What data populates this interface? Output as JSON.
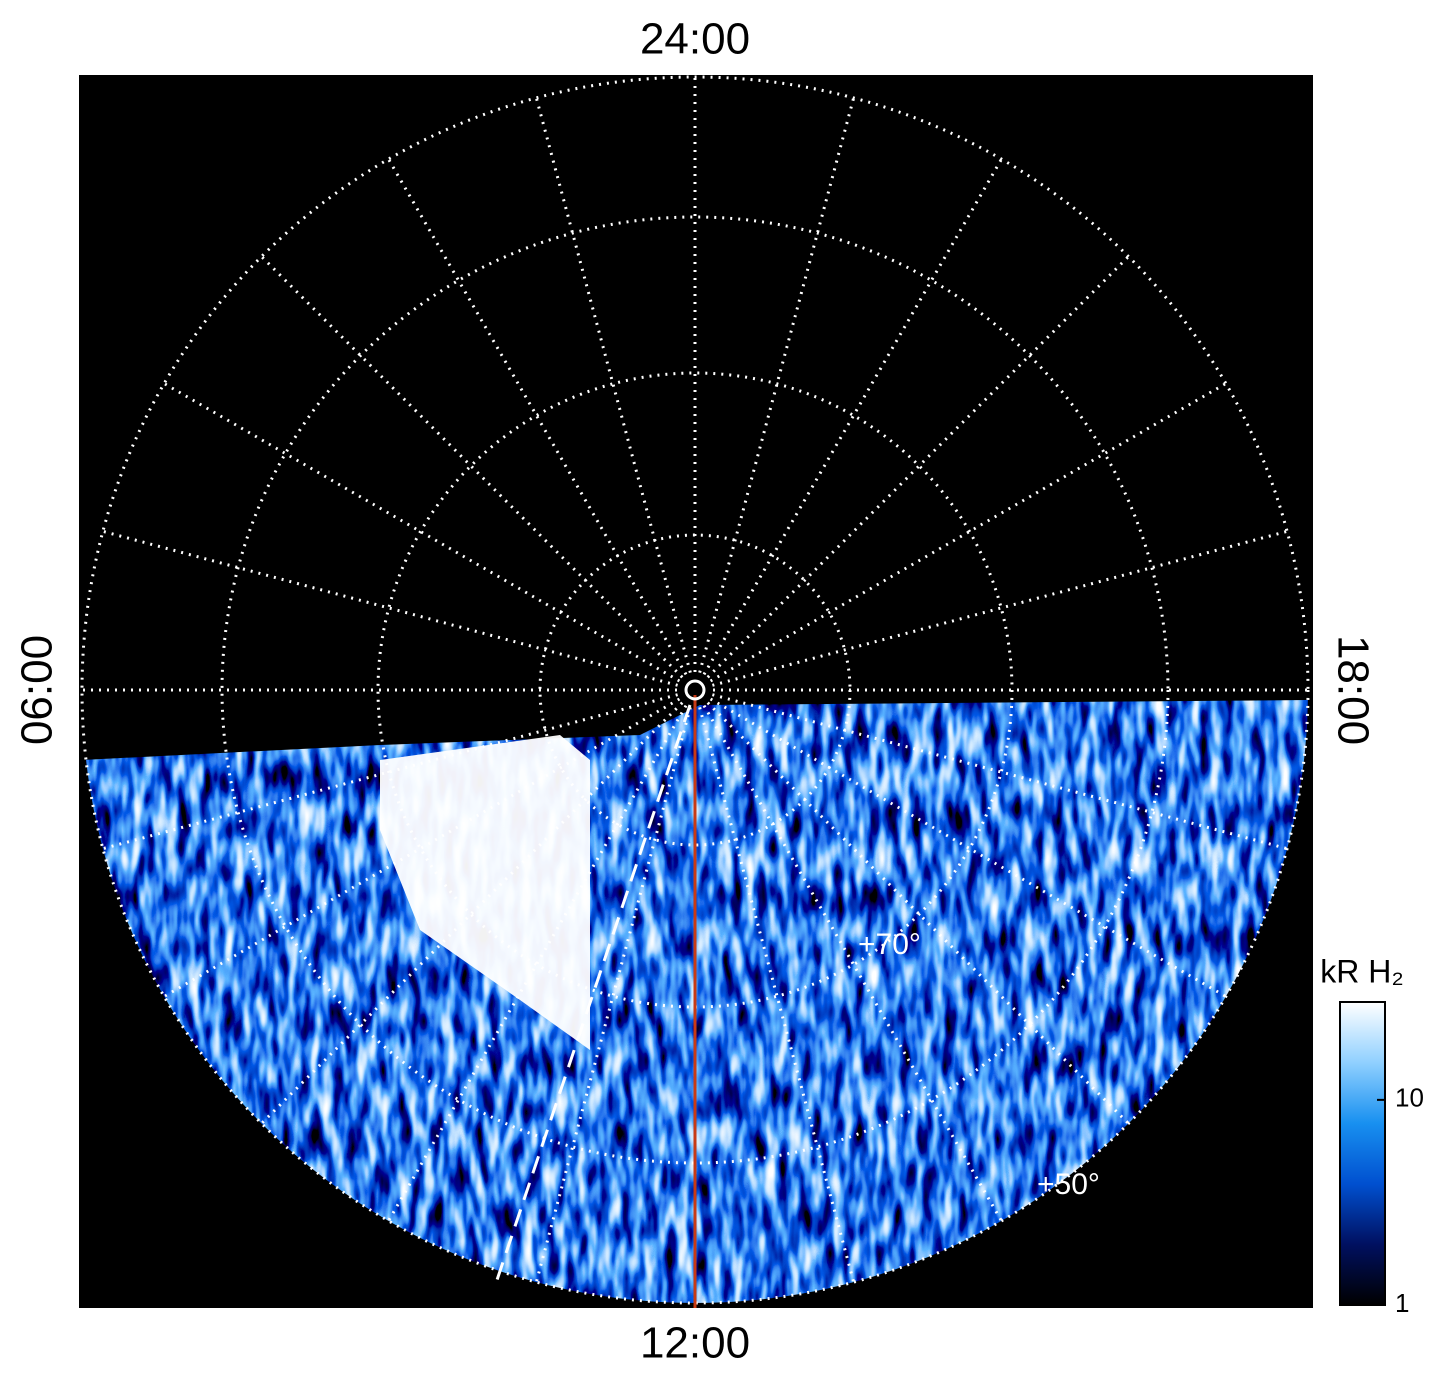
{
  "chart_data": {
    "type": "polar-map",
    "time_labels": {
      "top": "24:00",
      "left": "06:00",
      "right": "18:00",
      "bottom": "12:00"
    },
    "latitude_labels": [
      "+70°",
      "+50°"
    ],
    "colorbar": {
      "title": "kR H₂",
      "scale": "log",
      "lim": [
        1,
        30
      ],
      "ticks": [
        1,
        10
      ],
      "colors": [
        "#000000",
        "#001060",
        "#0050d0",
        "#1890f0",
        "#90d0ff",
        "#ffffff"
      ]
    },
    "meridian_color": "#c83a14"
  }
}
